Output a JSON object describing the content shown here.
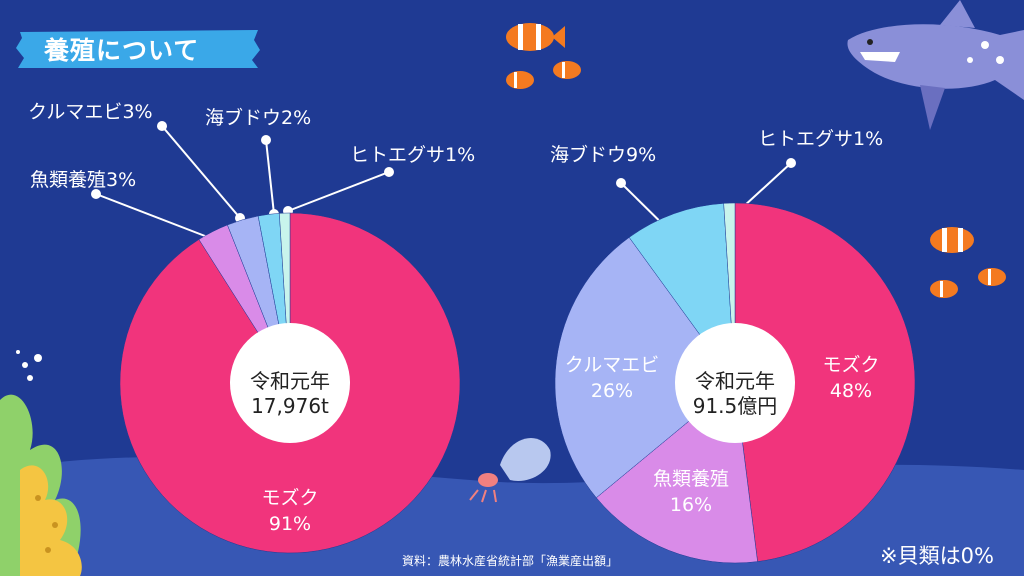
{
  "header": {
    "title": "養殖について"
  },
  "chart_data": [
    {
      "type": "pie",
      "center_label": [
        "令和元年",
        "17,976t"
      ],
      "slices": [
        {
          "label": "モズク",
          "value": 91,
          "display": "91%",
          "color": "#f1347c"
        },
        {
          "label": "魚類養殖",
          "value": 3,
          "display": "3%",
          "color": "#d98be8"
        },
        {
          "label": "クルマエビ",
          "value": 3,
          "display": "3%",
          "color": "#a6b4f5"
        },
        {
          "label": "海ブドウ",
          "value": 2,
          "display": "2%",
          "color": "#7fd6f5"
        },
        {
          "label": "ヒトエグサ",
          "value": 1,
          "display": "1%",
          "color": "#c8f4ec"
        }
      ]
    },
    {
      "type": "pie",
      "center_label": [
        "令和元年",
        "91.5億円"
      ],
      "slices": [
        {
          "label": "モズク",
          "value": 48,
          "display": "48%",
          "color": "#f1347c"
        },
        {
          "label": "魚類養殖",
          "value": 16,
          "display": "16%",
          "color": "#d98be8"
        },
        {
          "label": "クルマエビ",
          "value": 26,
          "display": "26%",
          "color": "#a6b4f5"
        },
        {
          "label": "海ブドウ",
          "value": 9,
          "display": "9%",
          "color": "#7fd6f5"
        },
        {
          "label": "ヒトエグサ",
          "value": 1,
          "display": "1%",
          "color": "#c8f4ec"
        }
      ]
    }
  ],
  "source": "資料：農林水産省統計部「漁業産出額」",
  "note": "※貝類は0%"
}
